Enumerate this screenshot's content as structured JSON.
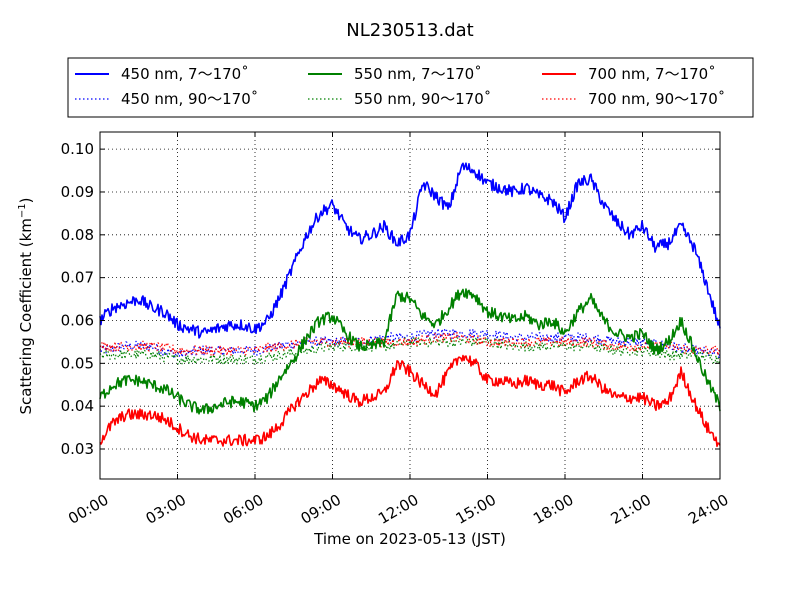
{
  "chart_data": {
    "type": "line",
    "title": "NL230513.dat",
    "xlabel": "Time on 2023-05-13 (JST)",
    "ylabel_main": "Scattering Coefficient (km",
    "ylabel_sup": "−1",
    "ylabel_end": ")",
    "xlim": [
      0,
      24
    ],
    "ylim": [
      0.023,
      0.104
    ],
    "x_ticks": [
      0,
      3,
      6,
      9,
      12,
      15,
      18,
      21,
      24
    ],
    "x_tick_labels": [
      "00:00",
      "03:00",
      "06:00",
      "09:00",
      "12:00",
      "15:00",
      "18:00",
      "21:00",
      "24:00"
    ],
    "y_ticks": [
      0.03,
      0.04,
      0.05,
      0.06,
      0.07,
      0.08,
      0.09,
      0.1
    ],
    "y_tick_labels": [
      "0.03",
      "0.04",
      "0.05",
      "0.06",
      "0.07",
      "0.08",
      "0.09",
      "0.10"
    ],
    "grid": true,
    "legend_position": "top",
    "series": [
      {
        "name": "450 nm, 7～170˚",
        "color": "#0000ff",
        "style": "solid",
        "x": [
          0,
          0.5,
          1,
          1.5,
          2,
          2.5,
          3,
          3.5,
          4,
          4.5,
          5,
          5.5,
          6,
          6.5,
          7,
          7.5,
          8,
          8.5,
          9,
          9.5,
          10,
          10.5,
          11,
          11.5,
          12,
          12.5,
          13,
          13.5,
          14,
          14.5,
          15,
          15.5,
          16,
          16.5,
          17,
          17.5,
          18,
          18.5,
          19,
          19.5,
          20,
          20.5,
          21,
          21.5,
          22,
          22.5,
          23,
          23.5,
          24
        ],
        "y": [
          0.06,
          0.063,
          0.064,
          0.065,
          0.063,
          0.062,
          0.059,
          0.058,
          0.057,
          0.058,
          0.059,
          0.059,
          0.058,
          0.06,
          0.066,
          0.073,
          0.08,
          0.085,
          0.087,
          0.082,
          0.079,
          0.08,
          0.082,
          0.078,
          0.08,
          0.092,
          0.089,
          0.086,
          0.096,
          0.095,
          0.092,
          0.091,
          0.09,
          0.091,
          0.089,
          0.088,
          0.084,
          0.092,
          0.093,
          0.087,
          0.083,
          0.08,
          0.082,
          0.077,
          0.078,
          0.082,
          0.077,
          0.068,
          0.058
        ]
      },
      {
        "name": "450 nm, 90～170˚",
        "color": "#0000ff",
        "style": "dotted",
        "x": [
          0,
          1,
          2,
          3,
          4,
          5,
          6,
          7,
          8,
          9,
          10,
          11,
          12,
          13,
          14,
          15,
          16,
          17,
          18,
          19,
          20,
          21,
          22,
          23,
          24
        ],
        "y": [
          0.053,
          0.054,
          0.054,
          0.052,
          0.053,
          0.053,
          0.053,
          0.054,
          0.055,
          0.055,
          0.055,
          0.056,
          0.056,
          0.057,
          0.057,
          0.057,
          0.056,
          0.056,
          0.056,
          0.056,
          0.055,
          0.055,
          0.054,
          0.053,
          0.052
        ]
      },
      {
        "name": "550 nm, 7～170˚",
        "color": "#008000",
        "style": "solid",
        "x": [
          0,
          0.5,
          1,
          1.5,
          2,
          2.5,
          3,
          3.5,
          4,
          4.5,
          5,
          5.5,
          6,
          6.5,
          7,
          7.5,
          8,
          8.5,
          9,
          9.5,
          10,
          10.5,
          11,
          11.5,
          12,
          12.5,
          13,
          13.5,
          14,
          14.5,
          15,
          15.5,
          16,
          16.5,
          17,
          17.5,
          18,
          18.5,
          19,
          19.5,
          20,
          20.5,
          21,
          21.5,
          22,
          22.5,
          23,
          23.5,
          24
        ],
        "y": [
          0.042,
          0.045,
          0.046,
          0.046,
          0.045,
          0.044,
          0.042,
          0.04,
          0.039,
          0.04,
          0.041,
          0.041,
          0.04,
          0.042,
          0.047,
          0.051,
          0.056,
          0.06,
          0.061,
          0.057,
          0.054,
          0.054,
          0.055,
          0.066,
          0.065,
          0.061,
          0.059,
          0.063,
          0.067,
          0.066,
          0.062,
          0.061,
          0.06,
          0.061,
          0.059,
          0.06,
          0.057,
          0.062,
          0.065,
          0.06,
          0.057,
          0.056,
          0.057,
          0.053,
          0.055,
          0.06,
          0.053,
          0.046,
          0.04
        ]
      },
      {
        "name": "550 nm, 90～170˚",
        "color": "#008000",
        "style": "dotted",
        "x": [
          0,
          1,
          2,
          3,
          4,
          5,
          6,
          7,
          8,
          9,
          10,
          11,
          12,
          13,
          14,
          15,
          16,
          17,
          18,
          19,
          20,
          21,
          22,
          23,
          24
        ],
        "y": [
          0.052,
          0.052,
          0.052,
          0.051,
          0.051,
          0.051,
          0.051,
          0.052,
          0.053,
          0.054,
          0.054,
          0.054,
          0.055,
          0.055,
          0.055,
          0.055,
          0.054,
          0.054,
          0.054,
          0.054,
          0.053,
          0.053,
          0.052,
          0.052,
          0.051
        ]
      },
      {
        "name": "700 nm, 7～170˚",
        "color": "#ff0000",
        "style": "solid",
        "x": [
          0,
          0.5,
          1,
          1.5,
          2,
          2.5,
          3,
          3.5,
          4,
          4.5,
          5,
          5.5,
          6,
          6.5,
          7,
          7.5,
          8,
          8.5,
          9,
          9.5,
          10,
          10.5,
          11,
          11.5,
          12,
          12.5,
          13,
          13.5,
          14,
          14.5,
          15,
          15.5,
          16,
          16.5,
          17,
          17.5,
          18,
          18.5,
          19,
          19.5,
          20,
          20.5,
          21,
          21.5,
          22,
          22.5,
          23,
          23.5,
          24
        ],
        "y": [
          0.032,
          0.036,
          0.038,
          0.038,
          0.038,
          0.037,
          0.035,
          0.033,
          0.032,
          0.032,
          0.032,
          0.032,
          0.032,
          0.033,
          0.036,
          0.04,
          0.043,
          0.046,
          0.045,
          0.043,
          0.041,
          0.042,
          0.043,
          0.05,
          0.048,
          0.045,
          0.043,
          0.048,
          0.052,
          0.05,
          0.046,
          0.046,
          0.045,
          0.046,
          0.045,
          0.045,
          0.043,
          0.046,
          0.047,
          0.044,
          0.042,
          0.042,
          0.042,
          0.04,
          0.041,
          0.048,
          0.041,
          0.035,
          0.031
        ]
      },
      {
        "name": "700 nm, 90～170˚",
        "color": "#ff0000",
        "style": "dotted",
        "x": [
          0,
          1,
          2,
          3,
          4,
          5,
          6,
          7,
          8,
          9,
          10,
          11,
          12,
          13,
          14,
          15,
          16,
          17,
          18,
          19,
          20,
          21,
          22,
          23,
          24
        ],
        "y": [
          0.054,
          0.054,
          0.054,
          0.053,
          0.053,
          0.053,
          0.053,
          0.054,
          0.055,
          0.055,
          0.055,
          0.055,
          0.055,
          0.056,
          0.056,
          0.055,
          0.055,
          0.055,
          0.055,
          0.055,
          0.054,
          0.054,
          0.054,
          0.053,
          0.053
        ]
      }
    ]
  }
}
